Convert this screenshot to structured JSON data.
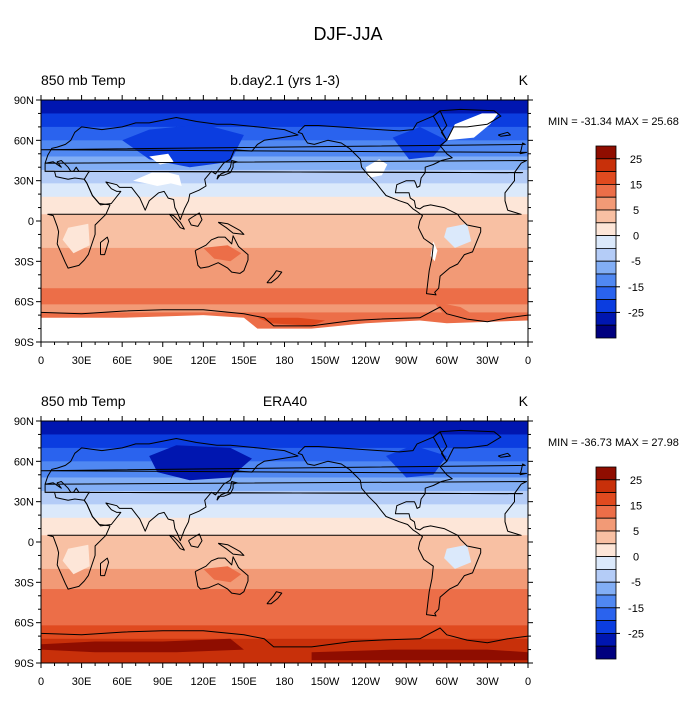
{
  "figure": {
    "title": "DJF-JJA"
  },
  "panels": [
    {
      "left_title": "850 mb Temp",
      "center_title": "b.day2.1 (yrs 1-3)",
      "units": "K",
      "stats": "MIN = -31.34 MAX =  25.68",
      "masked_regions": true
    },
    {
      "left_title": "850 mb Temp",
      "center_title": "ERA40",
      "units": "K",
      "stats": "MIN = -36.73 MAX =  27.98",
      "masked_regions": false
    }
  ],
  "axes": {
    "y_ticks": [
      "90N",
      "60N",
      "30N",
      "0",
      "30S",
      "60S",
      "90S"
    ],
    "x_ticks": [
      "0",
      "30E",
      "60E",
      "90E",
      "120E",
      "150E",
      "180",
      "150W",
      "120W",
      "90W",
      "60W",
      "30W",
      "0"
    ]
  },
  "colorbar": {
    "labels": [
      "25",
      "15",
      "5",
      "0",
      "-5",
      "-15",
      "-25"
    ],
    "levels": [
      -30,
      -25,
      -20,
      -15,
      -10,
      -5,
      -2,
      0,
      2,
      5,
      10,
      15,
      20,
      25,
      30
    ],
    "colors": [
      "#00007f",
      "#0016b0",
      "#0b3de0",
      "#2a63ee",
      "#5088f2",
      "#82aef5",
      "#b4ccf7",
      "#dbe9fb",
      "#fde6d8",
      "#f8c0a3",
      "#f29a76",
      "#ec6e48",
      "#e04a1f",
      "#c8300a",
      "#8f0d00"
    ]
  }
}
